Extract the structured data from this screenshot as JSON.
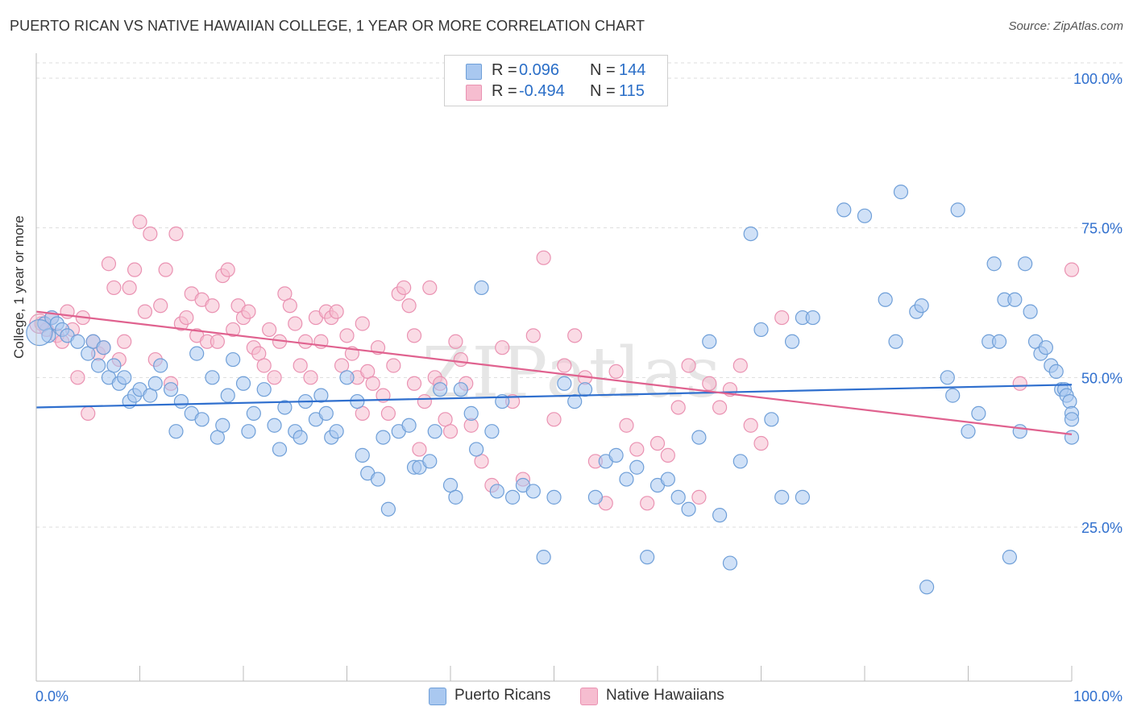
{
  "title": "PUERTO RICAN VS NATIVE HAWAIIAN COLLEGE, 1 YEAR OR MORE CORRELATION CHART",
  "source": "Source: ZipAtlas.com",
  "watermark": "ZIPatlas",
  "legend": {
    "rows": [
      {
        "r_label": "R =",
        "r_value": "0.096",
        "n_label": "N =",
        "n_value": "144"
      },
      {
        "r_label": "R =",
        "r_value": "-0.494",
        "n_label": "N =",
        "n_value": "115"
      }
    ]
  },
  "bottom_legend": {
    "series1": "Puerto Ricans",
    "series2": "Native Hawaiians"
  },
  "colors": {
    "blue_fill": "#a9c8f0",
    "blue_stroke": "#6f9fd8",
    "blue_line": "#2f6fce",
    "pink_fill": "#f6bdd0",
    "pink_stroke": "#ea92b2",
    "pink_line": "#e0628f",
    "tick_text": "#2f6fce",
    "grid": "#dddddd"
  },
  "chart_data": {
    "type": "scatter",
    "title": "PUERTO RICAN VS NATIVE HAWAIIAN COLLEGE, 1 YEAR OR MORE CORRELATION CHART",
    "xlabel": "",
    "ylabel": "College, 1 year or more",
    "xlim": [
      0,
      100
    ],
    "ylim": [
      0,
      105
    ],
    "x_tick_labels": [
      "0.0%",
      "100.0%"
    ],
    "y_ticks": [
      25,
      50,
      75,
      100
    ],
    "y_tick_labels": [
      "25.0%",
      "50.0%",
      "75.0%",
      "100.0%"
    ],
    "grid": true,
    "legend_position": "top-center",
    "series": [
      {
        "name": "Puerto Ricans",
        "color": "#6f9fd8",
        "trend": {
          "x": [
            0,
            100
          ],
          "y": [
            45.0,
            48.8
          ]
        },
        "points": [
          [
            0.8,
            59
          ],
          [
            1.2,
            57
          ],
          [
            1.5,
            60
          ],
          [
            2,
            59
          ],
          [
            2.5,
            58
          ],
          [
            3,
            57
          ],
          [
            4,
            56
          ],
          [
            5,
            54
          ],
          [
            5.5,
            56
          ],
          [
            6,
            52
          ],
          [
            6.5,
            55
          ],
          [
            7,
            50
          ],
          [
            7.5,
            52
          ],
          [
            8,
            49
          ],
          [
            8.5,
            50
          ],
          [
            9,
            46
          ],
          [
            9.5,
            47
          ],
          [
            10,
            48
          ],
          [
            11,
            47
          ],
          [
            11.5,
            49
          ],
          [
            12,
            52
          ],
          [
            13,
            48
          ],
          [
            13.5,
            41
          ],
          [
            14,
            46
          ],
          [
            15,
            44
          ],
          [
            15.5,
            54
          ],
          [
            16,
            43
          ],
          [
            17,
            50
          ],
          [
            17.5,
            40
          ],
          [
            18,
            42
          ],
          [
            18.5,
            47
          ],
          [
            19,
            53
          ],
          [
            20,
            49
          ],
          [
            20.5,
            41
          ],
          [
            21,
            44
          ],
          [
            22,
            48
          ],
          [
            23,
            42
          ],
          [
            23.5,
            38
          ],
          [
            24,
            45
          ],
          [
            25,
            41
          ],
          [
            25.5,
            40
          ],
          [
            26,
            46
          ],
          [
            27,
            43
          ],
          [
            27.5,
            47
          ],
          [
            28,
            44
          ],
          [
            28.5,
            40
          ],
          [
            29,
            41
          ],
          [
            30,
            50
          ],
          [
            31,
            46
          ],
          [
            31.5,
            37
          ],
          [
            32,
            34
          ],
          [
            33,
            33
          ],
          [
            33.5,
            40
          ],
          [
            34,
            28
          ],
          [
            35,
            41
          ],
          [
            36,
            42
          ],
          [
            36.5,
            35
          ],
          [
            37,
            35
          ],
          [
            38,
            36
          ],
          [
            38.5,
            41
          ],
          [
            39,
            48
          ],
          [
            40,
            32
          ],
          [
            40.5,
            30
          ],
          [
            41,
            48
          ],
          [
            42,
            44
          ],
          [
            42.5,
            38
          ],
          [
            43,
            65
          ],
          [
            44,
            41
          ],
          [
            44.5,
            31
          ],
          [
            45,
            46
          ],
          [
            46,
            30
          ],
          [
            47,
            32
          ],
          [
            48,
            31
          ],
          [
            49,
            20
          ],
          [
            50,
            30
          ],
          [
            51,
            49
          ],
          [
            52,
            46
          ],
          [
            53,
            48
          ],
          [
            54,
            30
          ],
          [
            55,
            36
          ],
          [
            56,
            37
          ],
          [
            57,
            33
          ],
          [
            58,
            35
          ],
          [
            59,
            20
          ],
          [
            60,
            32
          ],
          [
            61,
            33
          ],
          [
            62,
            30
          ],
          [
            63,
            28
          ],
          [
            64,
            40
          ],
          [
            65,
            56
          ],
          [
            66,
            27
          ],
          [
            67,
            19
          ],
          [
            68,
            36
          ],
          [
            69,
            74
          ],
          [
            70,
            58
          ],
          [
            71,
            43
          ],
          [
            72,
            30
          ],
          [
            73,
            56
          ],
          [
            74,
            60
          ],
          [
            75,
            60
          ],
          [
            78,
            78
          ],
          [
            80,
            77
          ],
          [
            82,
            63
          ],
          [
            83,
            56
          ],
          [
            83.5,
            81
          ],
          [
            85,
            61
          ],
          [
            85.5,
            62
          ],
          [
            88,
            50
          ],
          [
            88.5,
            47
          ],
          [
            89,
            78
          ],
          [
            90,
            41
          ],
          [
            91,
            44
          ],
          [
            92,
            56
          ],
          [
            92.5,
            69
          ],
          [
            93,
            56
          ],
          [
            93.5,
            63
          ],
          [
            94,
            20
          ],
          [
            94.5,
            63
          ],
          [
            95,
            41
          ],
          [
            95.5,
            69
          ],
          [
            96,
            61
          ],
          [
            96.5,
            56
          ],
          [
            97,
            54
          ],
          [
            97.5,
            55
          ],
          [
            98,
            52
          ],
          [
            98.5,
            51
          ],
          [
            99,
            48
          ],
          [
            99.3,
            48
          ],
          [
            99.5,
            47
          ],
          [
            99.8,
            46
          ],
          [
            100,
            44
          ],
          [
            100,
            43
          ],
          [
            100,
            40
          ],
          [
            86,
            15
          ],
          [
            74,
            30
          ]
        ]
      },
      {
        "name": "Native Hawaiians",
        "color": "#ea92b2",
        "trend": {
          "x": [
            0,
            100
          ],
          "y": [
            61.0,
            40.5
          ]
        },
        "points": [
          [
            0.5,
            59
          ],
          [
            1,
            58
          ],
          [
            1.5,
            60
          ],
          [
            2,
            57
          ],
          [
            2.5,
            56
          ],
          [
            3,
            61
          ],
          [
            3.5,
            58
          ],
          [
            4,
            50
          ],
          [
            4.5,
            60
          ],
          [
            5,
            44
          ],
          [
            5.5,
            56
          ],
          [
            6,
            54
          ],
          [
            6.5,
            55
          ],
          [
            7,
            69
          ],
          [
            7.5,
            65
          ],
          [
            8,
            53
          ],
          [
            8.5,
            56
          ],
          [
            9,
            65
          ],
          [
            9.5,
            68
          ],
          [
            10,
            76
          ],
          [
            10.5,
            61
          ],
          [
            11,
            74
          ],
          [
            11.5,
            53
          ],
          [
            12,
            62
          ],
          [
            12.5,
            68
          ],
          [
            13,
            49
          ],
          [
            13.5,
            74
          ],
          [
            14,
            59
          ],
          [
            14.5,
            60
          ],
          [
            15,
            64
          ],
          [
            15.5,
            57
          ],
          [
            16,
            63
          ],
          [
            16.5,
            56
          ],
          [
            17,
            62
          ],
          [
            17.5,
            56
          ],
          [
            18,
            67
          ],
          [
            18.5,
            68
          ],
          [
            19,
            58
          ],
          [
            19.5,
            62
          ],
          [
            20,
            60
          ],
          [
            20.5,
            61
          ],
          [
            21,
            55
          ],
          [
            21.5,
            54
          ],
          [
            22,
            52
          ],
          [
            22.5,
            58
          ],
          [
            23,
            50
          ],
          [
            23.5,
            56
          ],
          [
            24,
            64
          ],
          [
            24.5,
            62
          ],
          [
            25,
            59
          ],
          [
            25.5,
            52
          ],
          [
            26,
            56
          ],
          [
            26.5,
            50
          ],
          [
            27,
            60
          ],
          [
            27.5,
            56
          ],
          [
            28,
            61
          ],
          [
            28.5,
            60
          ],
          [
            29,
            61
          ],
          [
            29.5,
            52
          ],
          [
            30,
            57
          ],
          [
            30.5,
            54
          ],
          [
            31,
            50
          ],
          [
            31.5,
            59
          ],
          [
            32,
            51
          ],
          [
            32.5,
            49
          ],
          [
            33,
            55
          ],
          [
            33.5,
            47
          ],
          [
            34,
            44
          ],
          [
            34.5,
            52
          ],
          [
            35,
            64
          ],
          [
            35.5,
            65
          ],
          [
            36,
            62
          ],
          [
            36.5,
            57
          ],
          [
            37,
            38
          ],
          [
            37.5,
            46
          ],
          [
            38,
            65
          ],
          [
            38.5,
            50
          ],
          [
            39,
            49
          ],
          [
            39.5,
            43
          ],
          [
            40,
            41
          ],
          [
            40.5,
            56
          ],
          [
            41,
            53
          ],
          [
            41.5,
            49
          ],
          [
            42,
            42
          ],
          [
            43,
            36
          ],
          [
            44,
            32
          ],
          [
            45,
            55
          ],
          [
            46,
            46
          ],
          [
            47,
            33
          ],
          [
            48,
            57
          ],
          [
            49,
            70
          ],
          [
            50,
            43
          ],
          [
            51,
            52
          ],
          [
            52,
            57
          ],
          [
            53,
            50
          ],
          [
            54,
            36
          ],
          [
            55,
            29
          ],
          [
            56,
            51
          ],
          [
            57,
            42
          ],
          [
            58,
            38
          ],
          [
            59,
            29
          ],
          [
            60,
            39
          ],
          [
            61,
            37
          ],
          [
            62,
            45
          ],
          [
            63,
            52
          ],
          [
            64,
            30
          ],
          [
            65,
            49
          ],
          [
            66,
            45
          ],
          [
            67,
            48
          ],
          [
            68,
            52
          ],
          [
            69,
            42
          ],
          [
            70,
            39
          ],
          [
            72,
            60
          ],
          [
            95,
            49
          ],
          [
            100,
            68
          ],
          [
            31.5,
            44
          ],
          [
            36.5,
            49
          ]
        ]
      }
    ]
  }
}
